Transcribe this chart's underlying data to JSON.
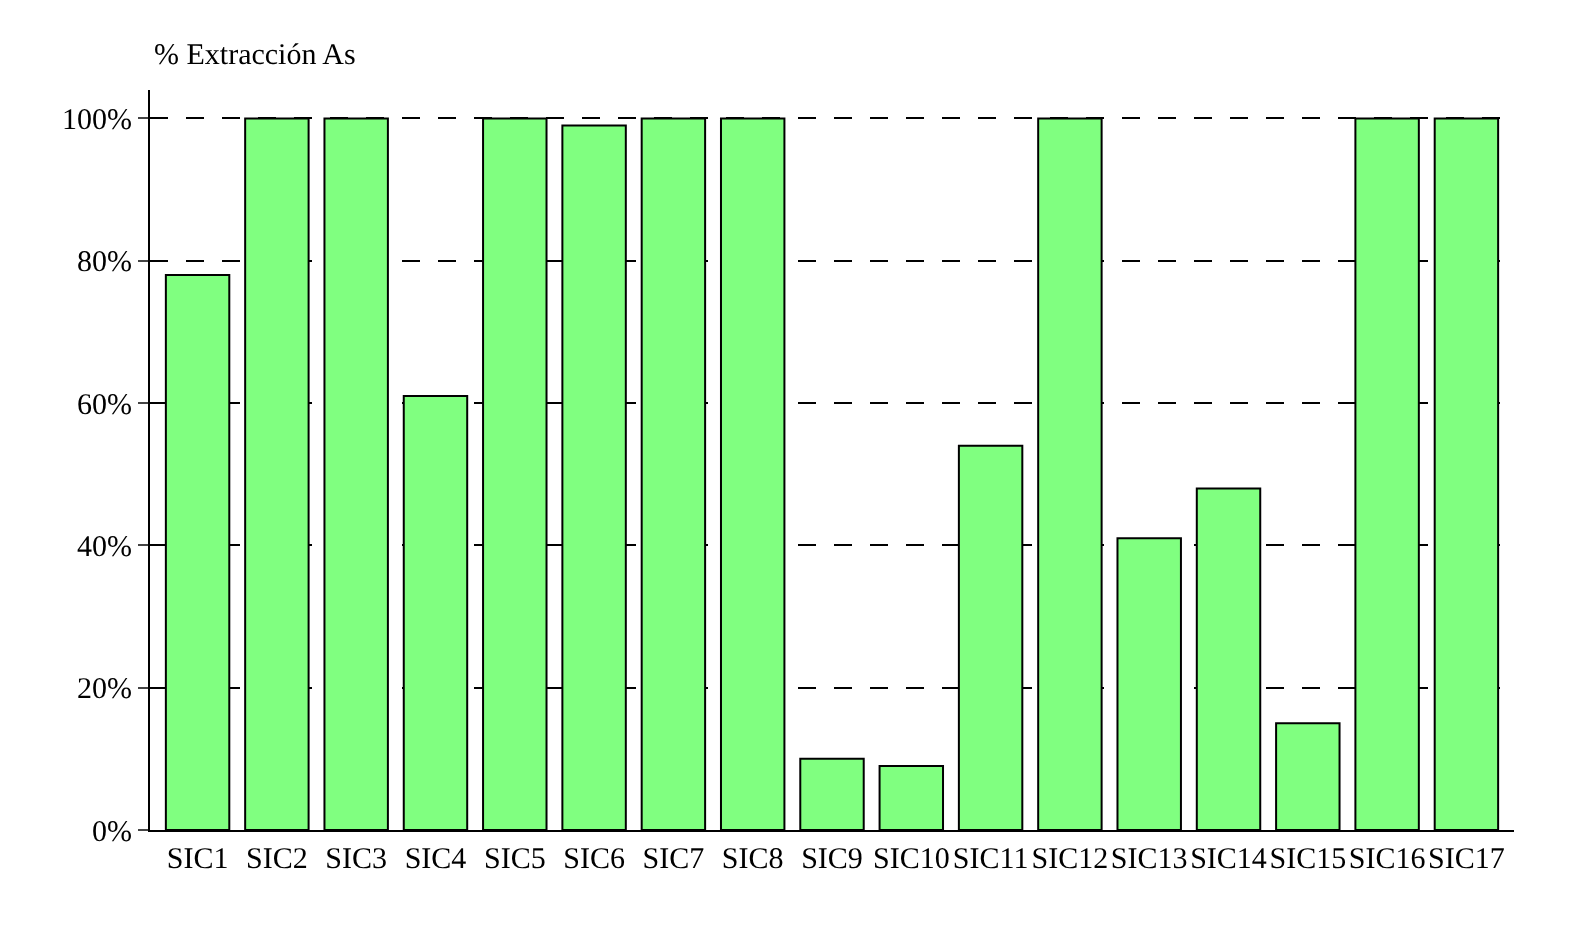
{
  "chart_data": {
    "type": "bar",
    "ylabel": "% Extracción As",
    "categories": [
      "SIC1",
      "SIC2",
      "SIC3",
      "SIC4",
      "SIC5",
      "SIC6",
      "SIC7",
      "SIC8",
      "SIC9",
      "SIC10",
      "SIC11",
      "SIC12",
      "SIC13",
      "SIC14",
      "SIC15",
      "SIC16",
      "SIC17"
    ],
    "series": [
      {
        "color": "#80ff80",
        "values": [
          78,
          100,
          100,
          61,
          100,
          99,
          100,
          100,
          10,
          9,
          54,
          100,
          41,
          48,
          15,
          100,
          100
        ]
      }
    ],
    "ylim": [
      0,
      104
    ],
    "yticks": [
      {
        "value": 0,
        "label": "0%"
      },
      {
        "value": 20,
        "label": "20%"
      },
      {
        "value": 40,
        "label": "40%"
      },
      {
        "value": 60,
        "label": "60%"
      },
      {
        "value": 80,
        "label": "80%"
      },
      {
        "value": 100,
        "label": "100%"
      }
    ],
    "grid": "y",
    "legend": false
  }
}
